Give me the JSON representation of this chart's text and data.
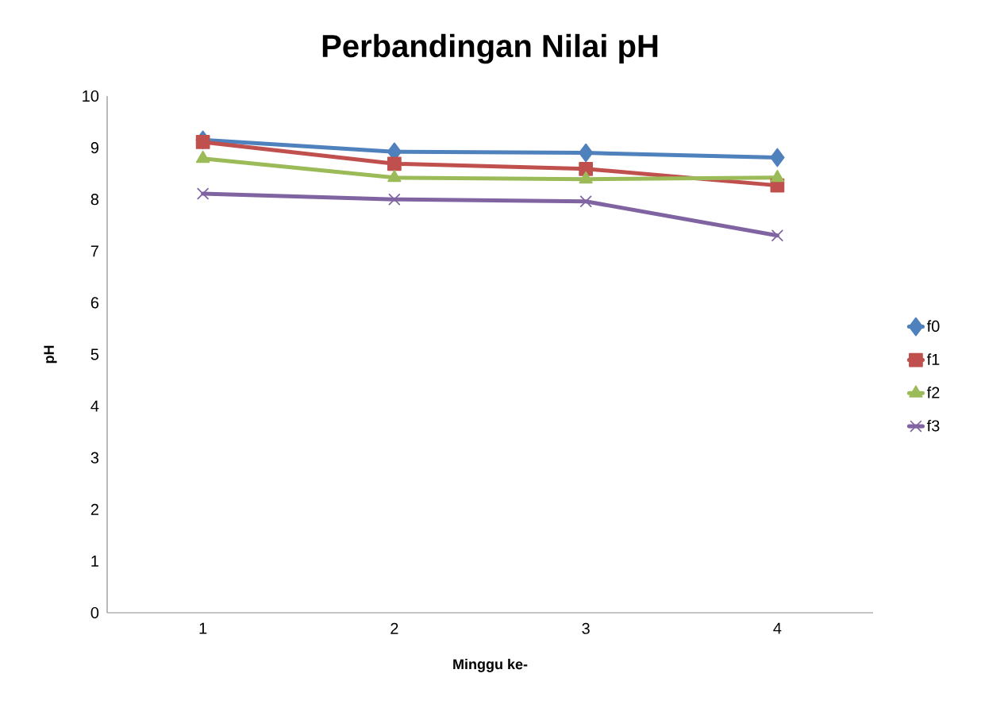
{
  "chart_data": {
    "type": "line",
    "title": "Perbandingan Nilai pH",
    "xlabel": "Minggu ke-",
    "ylabel": "pH",
    "categories": [
      "1",
      "2",
      "3",
      "4"
    ],
    "series": [
      {
        "name": "f0",
        "color": "#4f81bd",
        "marker": "diamond",
        "values": [
          9.15,
          8.92,
          8.9,
          8.81
        ]
      },
      {
        "name": "f1",
        "color": "#c0504d",
        "marker": "square",
        "values": [
          9.11,
          8.69,
          8.59,
          8.27
        ]
      },
      {
        "name": "f2",
        "color": "#9bbb59",
        "marker": "triangle",
        "values": [
          8.79,
          8.42,
          8.39,
          8.42
        ]
      },
      {
        "name": "f3",
        "color": "#8064a2",
        "marker": "cross",
        "values": [
          8.11,
          8.0,
          7.96,
          7.3
        ]
      }
    ],
    "ylim": [
      0,
      10
    ],
    "yticks": [
      0,
      1,
      2,
      3,
      4,
      5,
      6,
      7,
      8,
      9,
      10
    ],
    "grid": false,
    "legend": "right",
    "line_style": "solid"
  }
}
